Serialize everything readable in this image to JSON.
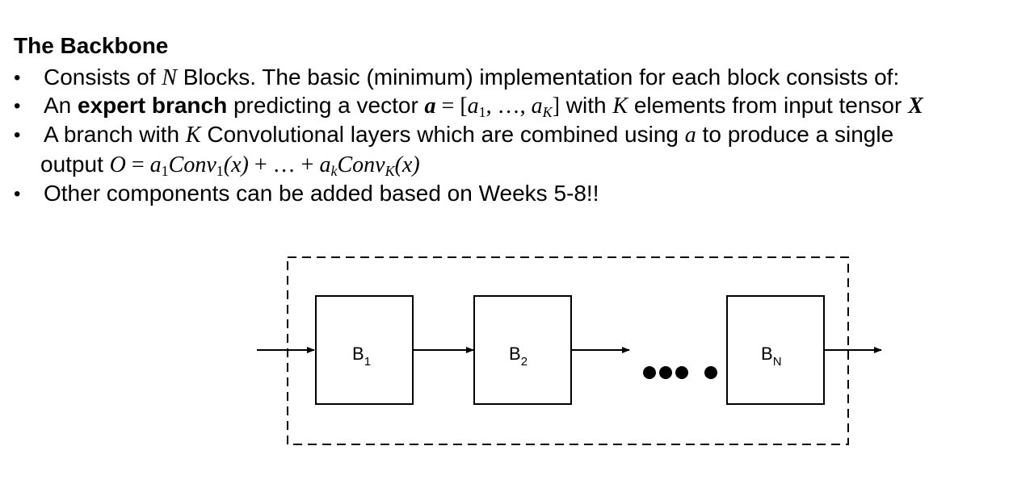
{
  "title": "The Backbone",
  "bullets": {
    "b1": {
      "pre": "Consists of ",
      "var": "N",
      "post": " Blocks. The basic (minimum) implementation for each block consists of:"
    },
    "b2": {
      "pre": "An ",
      "bold": "expert branch",
      "mid": " predicting a vector ",
      "vec": "a",
      "eq": " = [",
      "a": "a",
      "sub1": "1",
      "dots": ", …, ",
      "subK": "K",
      "close": "]",
      "with": " with ",
      "K": "K",
      "post": "  elements from input tensor ",
      "X": "X"
    },
    "b3": {
      "pre": "A branch with ",
      "K": "K",
      "mid": " Convolutional layers which are combined using ",
      "a": "a",
      "post": " to produce a single"
    },
    "b3_cont": {
      "pre": "output ",
      "O": "O",
      "eq": " = ",
      "a": "a",
      "sub1": "1",
      "conv": "Conv",
      "sub1b": "1",
      "x": "(x)",
      "plus": " +  … + ",
      "a2": "a",
      "subk": "k",
      "conv2": "Conv",
      "subK": "K",
      "x2": "(x)"
    },
    "b4": "Other components can be added based on Weeks 5-8!!"
  },
  "diagram": {
    "blocks": [
      {
        "label": "B",
        "sub": "1"
      },
      {
        "label": "B",
        "sub": "2"
      },
      {
        "label": "B",
        "sub": "N"
      }
    ]
  }
}
